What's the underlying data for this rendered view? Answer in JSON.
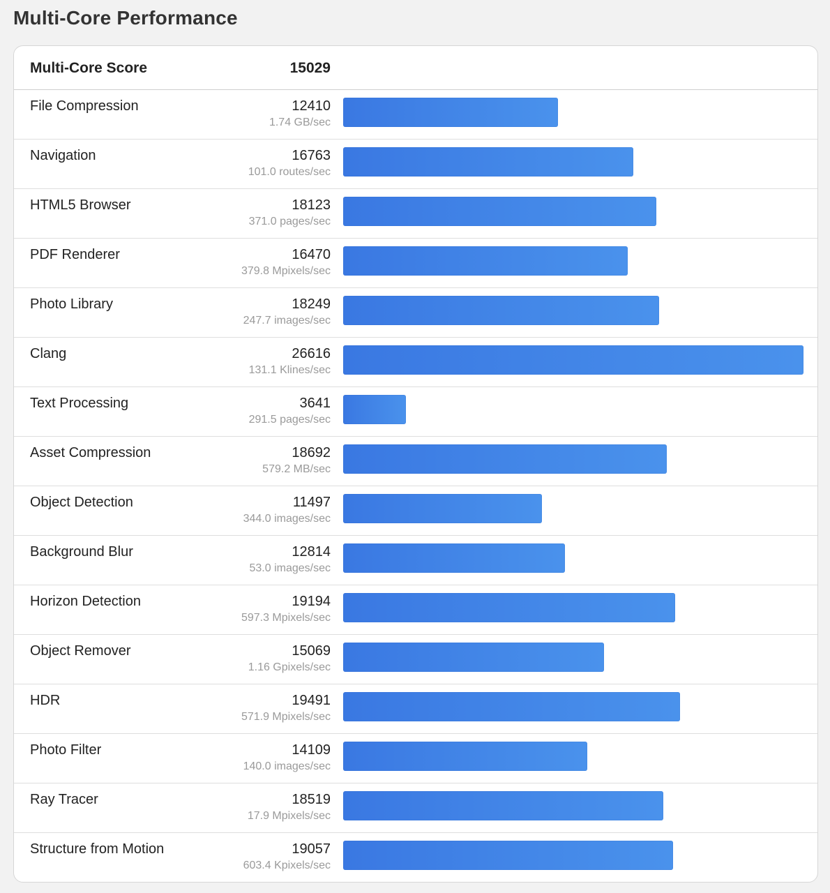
{
  "title": "Multi-Core Performance",
  "summary": {
    "label": "Multi-Core Score",
    "score": "15029"
  },
  "max_score": 26616,
  "tests": [
    {
      "name": "File Compression",
      "score": "12410",
      "rate": "1.74 GB/sec"
    },
    {
      "name": "Navigation",
      "score": "16763",
      "rate": "101.0 routes/sec"
    },
    {
      "name": "HTML5 Browser",
      "score": "18123",
      "rate": "371.0 pages/sec"
    },
    {
      "name": "PDF Renderer",
      "score": "16470",
      "rate": "379.8 Mpixels/sec"
    },
    {
      "name": "Photo Library",
      "score": "18249",
      "rate": "247.7 images/sec"
    },
    {
      "name": "Clang",
      "score": "26616",
      "rate": "131.1 Klines/sec"
    },
    {
      "name": "Text Processing",
      "score": "3641",
      "rate": "291.5 pages/sec"
    },
    {
      "name": "Asset Compression",
      "score": "18692",
      "rate": "579.2 MB/sec"
    },
    {
      "name": "Object Detection",
      "score": "11497",
      "rate": "344.0 images/sec"
    },
    {
      "name": "Background Blur",
      "score": "12814",
      "rate": "53.0 images/sec"
    },
    {
      "name": "Horizon Detection",
      "score": "19194",
      "rate": "597.3 Mpixels/sec"
    },
    {
      "name": "Object Remover",
      "score": "15069",
      "rate": "1.16 Gpixels/sec"
    },
    {
      "name": "HDR",
      "score": "19491",
      "rate": "571.9 Mpixels/sec"
    },
    {
      "name": "Photo Filter",
      "score": "14109",
      "rate": "140.0 images/sec"
    },
    {
      "name": "Ray Tracer",
      "score": "18519",
      "rate": "17.9 Mpixels/sec"
    },
    {
      "name": "Structure from Motion",
      "score": "19057",
      "rate": "603.4 Kpixels/sec"
    }
  ],
  "colors": {
    "bar_start": "#3a78e2",
    "bar_end": "#4a92ec"
  }
}
